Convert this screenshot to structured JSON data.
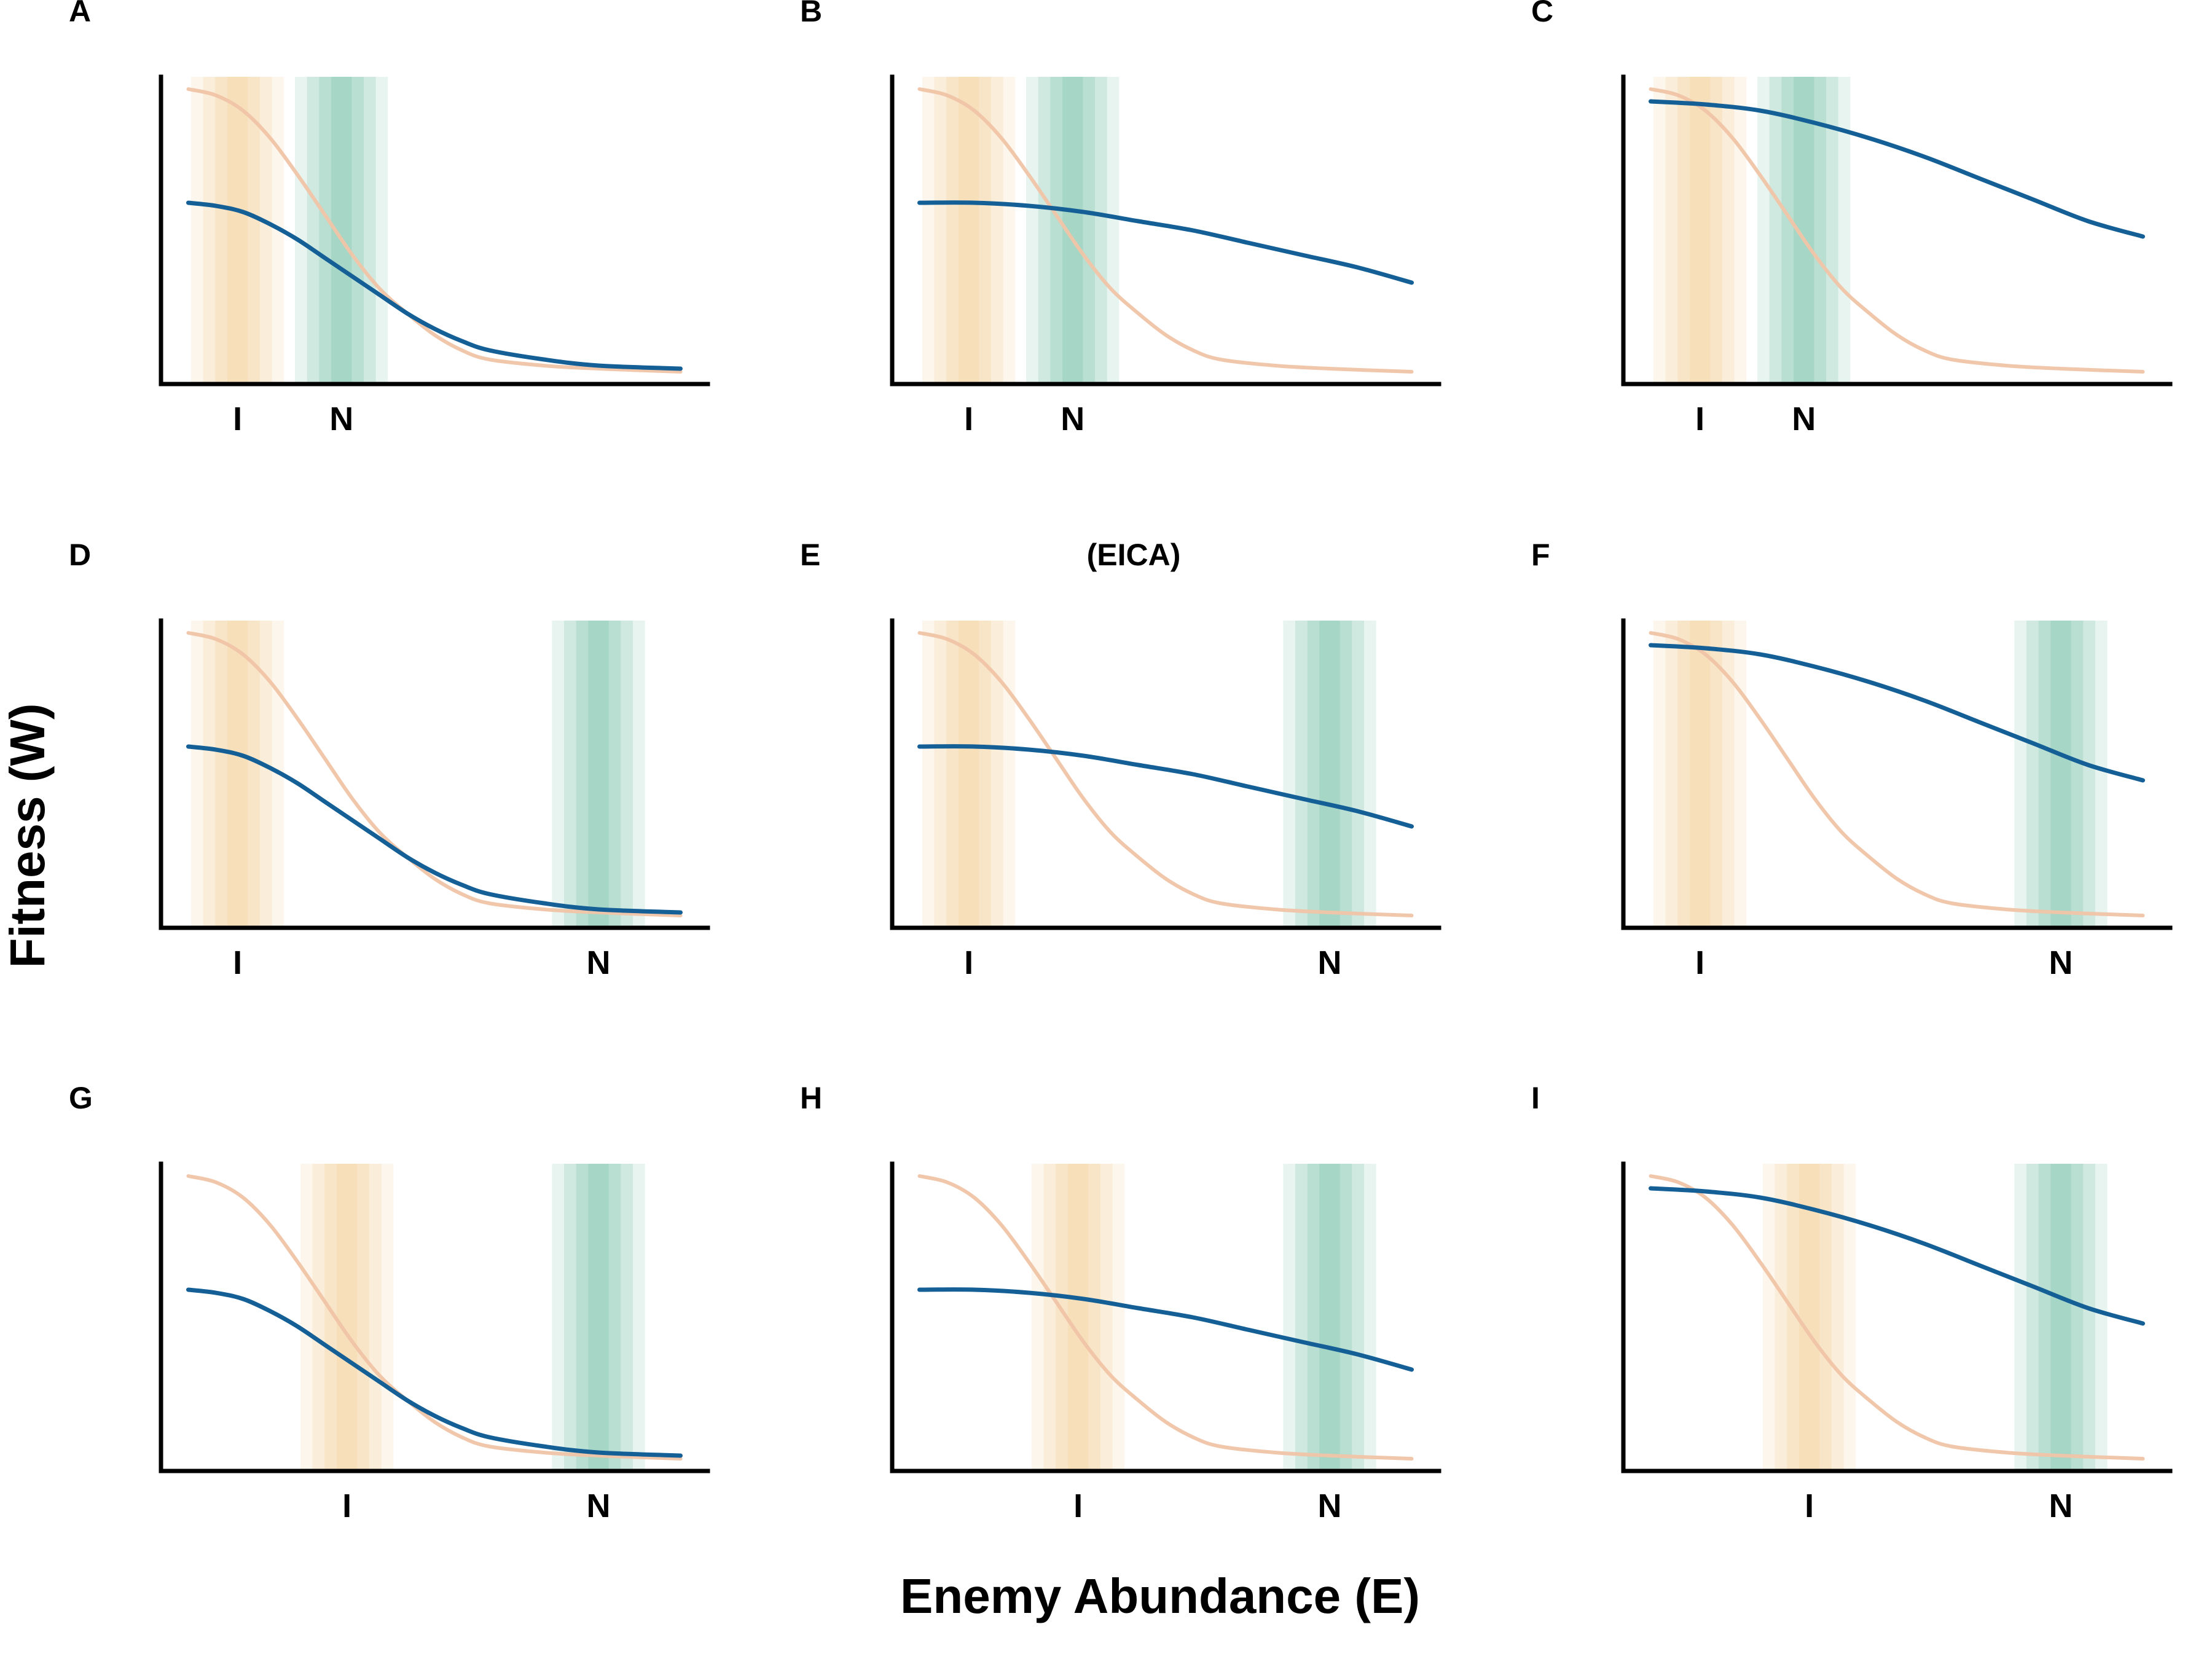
{
  "colors": {
    "native_curve": "#f0c4a6",
    "invasive_curve": "#155f97",
    "introduced_band": "#f2cf98",
    "native_band": "#7cc2aa",
    "axis": "#000000",
    "text": "#000000"
  },
  "figure": {
    "xlabel": "Enemy Abundance (E)",
    "ylabel": "Fitness (W)"
  },
  "chart_data": [
    {
      "panel": "A",
      "type": "line",
      "annotation": "",
      "xlim": [
        0,
        10
      ],
      "ylim": [
        0,
        1
      ],
      "band_labels": {
        "I": "I",
        "N": "N"
      },
      "band_centers": {
        "I": 1.4,
        "N": 3.3
      },
      "band_width": 1.7,
      "series": [
        {
          "role": "native",
          "x": [
            0.5,
            1,
            1.5,
            2,
            2.5,
            3,
            3.5,
            4,
            4.5,
            5,
            5.5,
            6,
            7,
            8,
            9.5
          ],
          "y": [
            0.96,
            0.94,
            0.89,
            0.8,
            0.68,
            0.55,
            0.42,
            0.31,
            0.23,
            0.16,
            0.11,
            0.08,
            0.06,
            0.05,
            0.04
          ]
        },
        {
          "role": "invasive",
          "x": [
            0.5,
            1,
            1.5,
            2,
            2.5,
            3,
            3.5,
            4,
            4.5,
            5,
            5.5,
            6,
            7,
            8,
            9.5
          ],
          "y": [
            0.59,
            0.58,
            0.56,
            0.52,
            0.47,
            0.41,
            0.35,
            0.29,
            0.23,
            0.18,
            0.14,
            0.11,
            0.08,
            0.06,
            0.05
          ]
        }
      ]
    },
    {
      "panel": "B",
      "type": "line",
      "annotation": "",
      "xlim": [
        0,
        10
      ],
      "ylim": [
        0,
        1
      ],
      "band_labels": {
        "I": "I",
        "N": "N"
      },
      "band_centers": {
        "I": 1.4,
        "N": 3.3
      },
      "band_width": 1.7,
      "series": [
        {
          "role": "native",
          "x": [
            0.5,
            1,
            1.5,
            2,
            2.5,
            3,
            3.5,
            4,
            4.5,
            5,
            5.5,
            6,
            7,
            8,
            9.5
          ],
          "y": [
            0.96,
            0.94,
            0.89,
            0.8,
            0.68,
            0.55,
            0.42,
            0.31,
            0.23,
            0.16,
            0.11,
            0.08,
            0.06,
            0.05,
            0.04
          ]
        },
        {
          "role": "invasive",
          "x": [
            0.5,
            1.5,
            2.5,
            3.5,
            4.5,
            5.5,
            6.5,
            7.5,
            8.5,
            9.5
          ],
          "y": [
            0.59,
            0.59,
            0.58,
            0.56,
            0.53,
            0.5,
            0.46,
            0.42,
            0.38,
            0.33
          ]
        }
      ]
    },
    {
      "panel": "C",
      "type": "line",
      "annotation": "",
      "xlim": [
        0,
        10
      ],
      "ylim": [
        0,
        1
      ],
      "band_labels": {
        "I": "I",
        "N": "N"
      },
      "band_centers": {
        "I": 1.4,
        "N": 3.3
      },
      "band_width": 1.7,
      "series": [
        {
          "role": "native",
          "x": [
            0.5,
            1,
            1.5,
            2,
            2.5,
            3,
            3.5,
            4,
            4.5,
            5,
            5.5,
            6,
            7,
            8,
            9.5
          ],
          "y": [
            0.96,
            0.94,
            0.89,
            0.8,
            0.68,
            0.55,
            0.42,
            0.31,
            0.23,
            0.16,
            0.11,
            0.08,
            0.06,
            0.05,
            0.04
          ]
        },
        {
          "role": "invasive",
          "x": [
            0.5,
            1.5,
            2.5,
            3.5,
            4.5,
            5.5,
            6.5,
            7.5,
            8.5,
            9.5
          ],
          "y": [
            0.92,
            0.91,
            0.89,
            0.85,
            0.8,
            0.74,
            0.67,
            0.6,
            0.53,
            0.48
          ]
        }
      ]
    },
    {
      "panel": "D",
      "type": "line",
      "annotation": "",
      "xlim": [
        0,
        10
      ],
      "ylim": [
        0,
        1
      ],
      "band_labels": {
        "I": "I",
        "N": "N"
      },
      "band_centers": {
        "I": 1.4,
        "N": 8.0
      },
      "band_width": 1.7,
      "series": [
        {
          "role": "native",
          "x": [
            0.5,
            1,
            1.5,
            2,
            2.5,
            3,
            3.5,
            4,
            4.5,
            5,
            5.5,
            6,
            7,
            8,
            9.5
          ],
          "y": [
            0.96,
            0.94,
            0.89,
            0.8,
            0.68,
            0.55,
            0.42,
            0.31,
            0.23,
            0.16,
            0.11,
            0.08,
            0.06,
            0.05,
            0.04
          ]
        },
        {
          "role": "invasive",
          "x": [
            0.5,
            1,
            1.5,
            2,
            2.5,
            3,
            3.5,
            4,
            4.5,
            5,
            5.5,
            6,
            7,
            8,
            9.5
          ],
          "y": [
            0.59,
            0.58,
            0.56,
            0.52,
            0.47,
            0.41,
            0.35,
            0.29,
            0.23,
            0.18,
            0.14,
            0.11,
            0.08,
            0.06,
            0.05
          ]
        }
      ]
    },
    {
      "panel": "E",
      "type": "line",
      "annotation": "(EICA)",
      "xlim": [
        0,
        10
      ],
      "ylim": [
        0,
        1
      ],
      "band_labels": {
        "I": "I",
        "N": "N"
      },
      "band_centers": {
        "I": 1.4,
        "N": 8.0
      },
      "band_width": 1.7,
      "series": [
        {
          "role": "native",
          "x": [
            0.5,
            1,
            1.5,
            2,
            2.5,
            3,
            3.5,
            4,
            4.5,
            5,
            5.5,
            6,
            7,
            8,
            9.5
          ],
          "y": [
            0.96,
            0.94,
            0.89,
            0.8,
            0.68,
            0.55,
            0.42,
            0.31,
            0.23,
            0.16,
            0.11,
            0.08,
            0.06,
            0.05,
            0.04
          ]
        },
        {
          "role": "invasive",
          "x": [
            0.5,
            1.5,
            2.5,
            3.5,
            4.5,
            5.5,
            6.5,
            7.5,
            8.5,
            9.5
          ],
          "y": [
            0.59,
            0.59,
            0.58,
            0.56,
            0.53,
            0.5,
            0.46,
            0.42,
            0.38,
            0.33
          ]
        }
      ]
    },
    {
      "panel": "F",
      "type": "line",
      "annotation": "",
      "xlim": [
        0,
        10
      ],
      "ylim": [
        0,
        1
      ],
      "band_labels": {
        "I": "I",
        "N": "N"
      },
      "band_centers": {
        "I": 1.4,
        "N": 8.0
      },
      "band_width": 1.7,
      "series": [
        {
          "role": "native",
          "x": [
            0.5,
            1,
            1.5,
            2,
            2.5,
            3,
            3.5,
            4,
            4.5,
            5,
            5.5,
            6,
            7,
            8,
            9.5
          ],
          "y": [
            0.96,
            0.94,
            0.89,
            0.8,
            0.68,
            0.55,
            0.42,
            0.31,
            0.23,
            0.16,
            0.11,
            0.08,
            0.06,
            0.05,
            0.04
          ]
        },
        {
          "role": "invasive",
          "x": [
            0.5,
            1.5,
            2.5,
            3.5,
            4.5,
            5.5,
            6.5,
            7.5,
            8.5,
            9.5
          ],
          "y": [
            0.92,
            0.91,
            0.89,
            0.85,
            0.8,
            0.74,
            0.67,
            0.6,
            0.53,
            0.48
          ]
        }
      ]
    },
    {
      "panel": "G",
      "type": "line",
      "annotation": "",
      "xlim": [
        0,
        10
      ],
      "ylim": [
        0,
        1
      ],
      "band_labels": {
        "I": "I",
        "N": "N"
      },
      "band_centers": {
        "I": 3.4,
        "N": 8.0
      },
      "band_width": 1.7,
      "series": [
        {
          "role": "native",
          "x": [
            0.5,
            1,
            1.5,
            2,
            2.5,
            3,
            3.5,
            4,
            4.5,
            5,
            5.5,
            6,
            7,
            8,
            9.5
          ],
          "y": [
            0.96,
            0.94,
            0.89,
            0.8,
            0.68,
            0.55,
            0.42,
            0.31,
            0.23,
            0.16,
            0.11,
            0.08,
            0.06,
            0.05,
            0.04
          ]
        },
        {
          "role": "invasive",
          "x": [
            0.5,
            1,
            1.5,
            2,
            2.5,
            3,
            3.5,
            4,
            4.5,
            5,
            5.5,
            6,
            7,
            8,
            9.5
          ],
          "y": [
            0.59,
            0.58,
            0.56,
            0.52,
            0.47,
            0.41,
            0.35,
            0.29,
            0.23,
            0.18,
            0.14,
            0.11,
            0.08,
            0.06,
            0.05
          ]
        }
      ]
    },
    {
      "panel": "H",
      "type": "line",
      "annotation": "",
      "xlim": [
        0,
        10
      ],
      "ylim": [
        0,
        1
      ],
      "band_labels": {
        "I": "I",
        "N": "N"
      },
      "band_centers": {
        "I": 3.4,
        "N": 8.0
      },
      "band_width": 1.7,
      "series": [
        {
          "role": "native",
          "x": [
            0.5,
            1,
            1.5,
            2,
            2.5,
            3,
            3.5,
            4,
            4.5,
            5,
            5.5,
            6,
            7,
            8,
            9.5
          ],
          "y": [
            0.96,
            0.94,
            0.89,
            0.8,
            0.68,
            0.55,
            0.42,
            0.31,
            0.23,
            0.16,
            0.11,
            0.08,
            0.06,
            0.05,
            0.04
          ]
        },
        {
          "role": "invasive",
          "x": [
            0.5,
            1.5,
            2.5,
            3.5,
            4.5,
            5.5,
            6.5,
            7.5,
            8.5,
            9.5
          ],
          "y": [
            0.59,
            0.59,
            0.58,
            0.56,
            0.53,
            0.5,
            0.46,
            0.42,
            0.38,
            0.33
          ]
        }
      ]
    },
    {
      "panel": "I",
      "type": "line",
      "annotation": "",
      "xlim": [
        0,
        10
      ],
      "ylim": [
        0,
        1
      ],
      "band_labels": {
        "I": "I",
        "N": "N"
      },
      "band_centers": {
        "I": 3.4,
        "N": 8.0
      },
      "band_width": 1.7,
      "series": [
        {
          "role": "native",
          "x": [
            0.5,
            1,
            1.5,
            2,
            2.5,
            3,
            3.5,
            4,
            4.5,
            5,
            5.5,
            6,
            7,
            8,
            9.5
          ],
          "y": [
            0.96,
            0.94,
            0.89,
            0.8,
            0.68,
            0.55,
            0.42,
            0.31,
            0.23,
            0.16,
            0.11,
            0.08,
            0.06,
            0.05,
            0.04
          ]
        },
        {
          "role": "invasive",
          "x": [
            0.5,
            1.5,
            2.5,
            3.5,
            4.5,
            5.5,
            6.5,
            7.5,
            8.5,
            9.5
          ],
          "y": [
            0.92,
            0.91,
            0.89,
            0.85,
            0.8,
            0.74,
            0.67,
            0.6,
            0.53,
            0.48
          ]
        }
      ]
    }
  ]
}
